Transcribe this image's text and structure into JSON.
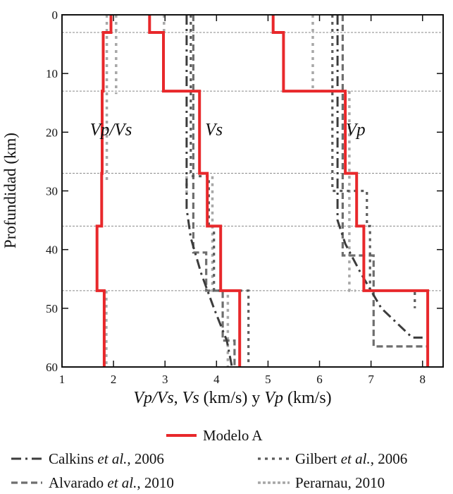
{
  "chart_data": {
    "type": "line",
    "orientation": "depth-profile",
    "xlabel": {
      "part1": "Vp/Vs",
      "part2": ", ",
      "part3": "Vs",
      "part4": " (km/s) y ",
      "part5": "Vp",
      "part6": " (km/s)"
    },
    "ylabel": "Profundidad (km)",
    "xlim": [
      1,
      8.4
    ],
    "ylim": [
      0,
      60
    ],
    "xticks": [
      "1",
      "2",
      "3",
      "4",
      "5",
      "6",
      "7",
      "8"
    ],
    "yticks": [
      "0",
      "10",
      "20",
      "30",
      "40",
      "50",
      "60"
    ],
    "boundaries": [
      3,
      13,
      27,
      36,
      47
    ],
    "annotations": [
      {
        "text": "Vp/Vs",
        "x": 1.95,
        "y": 20.5
      },
      {
        "text": "Vs",
        "x": 3.95,
        "y": 20.5
      },
      {
        "text": "Vp",
        "x": 6.7,
        "y": 20.5
      }
    ],
    "legend": [
      {
        "id": "modelo_a",
        "label": "Modelo A"
      },
      {
        "id": "calkins",
        "label_pre": "Calkins ",
        "label_it": "et al.",
        "label_post": ", 2006"
      },
      {
        "id": "gilbert",
        "label_pre": "Gilbert ",
        "label_it": "et al.",
        "label_post": ", 2006"
      },
      {
        "id": "alvarado",
        "label_pre": "Alvarado ",
        "label_it": "et al.",
        "label_post": ", 2010"
      },
      {
        "id": "perarnau",
        "label_pre": "Perarnau, 2010",
        "label_it": "",
        "label_post": ""
      }
    ],
    "series": [
      {
        "id": "modelo_a",
        "name": "Modelo A",
        "color": "#e8282b",
        "style": "solid",
        "width": 4,
        "lines": [
          [
            [
              1.95,
              0
            ],
            [
              1.95,
              3
            ],
            [
              1.8,
              3
            ],
            [
              1.8,
              13
            ],
            [
              1.78,
              13
            ],
            [
              1.78,
              27
            ],
            [
              1.77,
              27
            ],
            [
              1.77,
              36
            ],
            [
              1.68,
              36
            ],
            [
              1.68,
              47
            ],
            [
              1.82,
              47
            ],
            [
              1.82,
              60
            ]
          ],
          [
            [
              2.7,
              0
            ],
            [
              2.7,
              3
            ],
            [
              2.97,
              3
            ],
            [
              2.97,
              13
            ],
            [
              3.67,
              13
            ],
            [
              3.67,
              27
            ],
            [
              3.82,
              27
            ],
            [
              3.82,
              36
            ],
            [
              4.08,
              36
            ],
            [
              4.08,
              47
            ],
            [
              4.45,
              47
            ],
            [
              4.45,
              60
            ]
          ],
          [
            [
              5.1,
              0
            ],
            [
              5.1,
              3
            ],
            [
              5.3,
              3
            ],
            [
              5.3,
              13
            ],
            [
              6.5,
              13
            ],
            [
              6.5,
              27
            ],
            [
              6.72,
              27
            ],
            [
              6.72,
              36
            ],
            [
              6.86,
              36
            ],
            [
              6.86,
              47
            ],
            [
              8.1,
              47
            ],
            [
              8.1,
              60
            ]
          ]
        ]
      },
      {
        "id": "calkins",
        "name": "Calkins et al., 2006",
        "color": "#3c3c3c",
        "style": "dashdot",
        "width": 3,
        "lines": [
          [
            [
              3.42,
              0
            ],
            [
              3.42,
              33
            ],
            [
              3.5,
              38
            ],
            [
              3.7,
              44
            ],
            [
              3.95,
              50
            ],
            [
              4.2,
              55.5
            ],
            [
              4.3,
              60
            ]
          ],
          [
            [
              6.35,
              0
            ],
            [
              6.35,
              35
            ],
            [
              6.5,
              39
            ],
            [
              6.8,
              44
            ],
            [
              7.2,
              50
            ],
            [
              7.8,
              55
            ],
            [
              8.0,
              55
            ]
          ]
        ]
      },
      {
        "id": "gilbert",
        "name": "Gilbert et al., 2006",
        "color": "#5a5a5a",
        "style": "dotted",
        "width": 3.2,
        "lines": [
          [
            [
              3.5,
              0
            ],
            [
              3.5,
              27.5
            ],
            [
              3.85,
              27.5
            ],
            [
              3.85,
              36
            ],
            [
              3.95,
              36
            ],
            [
              3.95,
              47
            ],
            [
              4.62,
              47
            ],
            [
              4.62,
              60
            ]
          ],
          [
            [
              6.25,
              0
            ],
            [
              6.25,
              30
            ],
            [
              6.92,
              30
            ],
            [
              6.92,
              36
            ],
            [
              6.98,
              36
            ],
            [
              6.98,
              47
            ],
            [
              7.85,
              47
            ],
            [
              7.85,
              50
            ]
          ]
        ]
      },
      {
        "id": "alvarado",
        "name": "Alvarado et al., 2010",
        "color": "#6e6e6e",
        "style": "dashed",
        "width": 3.2,
        "lines": [
          [
            [
              3.55,
              0
            ],
            [
              3.55,
              40.5
            ],
            [
              3.8,
              40.5
            ],
            [
              3.8,
              47
            ],
            [
              4.12,
              47
            ],
            [
              4.12,
              55.5
            ],
            [
              4.35,
              55.5
            ],
            [
              4.35,
              60
            ]
          ],
          [
            [
              6.45,
              0
            ],
            [
              6.45,
              41
            ],
            [
              7.05,
              41
            ],
            [
              7.05,
              56.5
            ],
            [
              8.1,
              56.5
            ]
          ]
        ]
      },
      {
        "id": "perarnau",
        "name": "Perarnau, 2010",
        "color": "#a7a7a7",
        "style": "dotted",
        "width": 3.5,
        "lines": [
          [
            [
              1.87,
              0
            ],
            [
              1.87,
              28.5
            ]
          ],
          [
            [
              2.05,
              0
            ],
            [
              2.05,
              13.5
            ]
          ],
          [
            [
              1.86,
              47
            ],
            [
              1.86,
              60
            ]
          ],
          [
            [
              2.98,
              0
            ],
            [
              2.98,
              3.5
            ]
          ],
          [
            [
              3.42,
              27.5
            ],
            [
              3.42,
              30.5
            ]
          ],
          [
            [
              3.92,
              27.5
            ],
            [
              3.92,
              47
            ],
            [
              4.22,
              47
            ],
            [
              4.22,
              60
            ]
          ],
          [
            [
              5.87,
              0
            ],
            [
              5.87,
              13
            ],
            [
              6.58,
              13
            ],
            [
              6.58,
              47
            ],
            [
              6.7,
              47
            ]
          ]
        ]
      }
    ]
  }
}
